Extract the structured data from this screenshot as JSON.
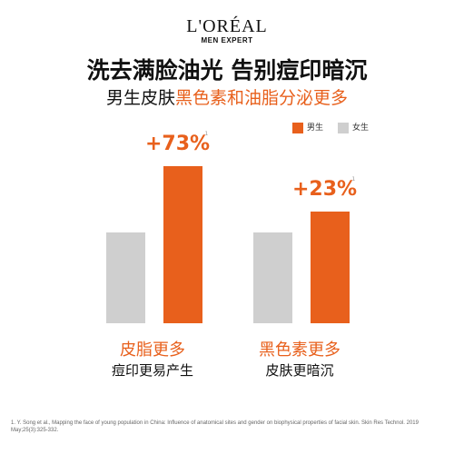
{
  "brand": {
    "name": "L'ORÉAL",
    "sub": "MEN EXPERT"
  },
  "headline": "洗去满脸油光  告别痘印暗沉",
  "subline": {
    "dark": "男生皮肤",
    "accent": "黑色素和油脂分泌更多"
  },
  "colors": {
    "male": "#e8601c",
    "female": "#cfcfcf"
  },
  "chart_data": {
    "type": "bar",
    "series": [
      {
        "name": "男生",
        "color": "#e8601c"
      },
      {
        "name": "女生",
        "color": "#cfcfcf"
      }
    ],
    "groups": [
      {
        "label": "皮脂更多",
        "sublabel": "痘印更易产生",
        "female": 1.0,
        "male": 1.73,
        "annotation": "+73%"
      },
      {
        "label": "黑色素更多",
        "sublabel": "皮肤更暗沉",
        "female": 1.0,
        "male": 1.23,
        "annotation": "+23%"
      }
    ],
    "footnote_marker": "1"
  },
  "reference": "1. Y. Song et al., Mapping the face of young population in China: Influence of anatomical sites and gender on biophysical properties of facial skin. Skin Res Technol. 2019 May;25(3):325-332."
}
